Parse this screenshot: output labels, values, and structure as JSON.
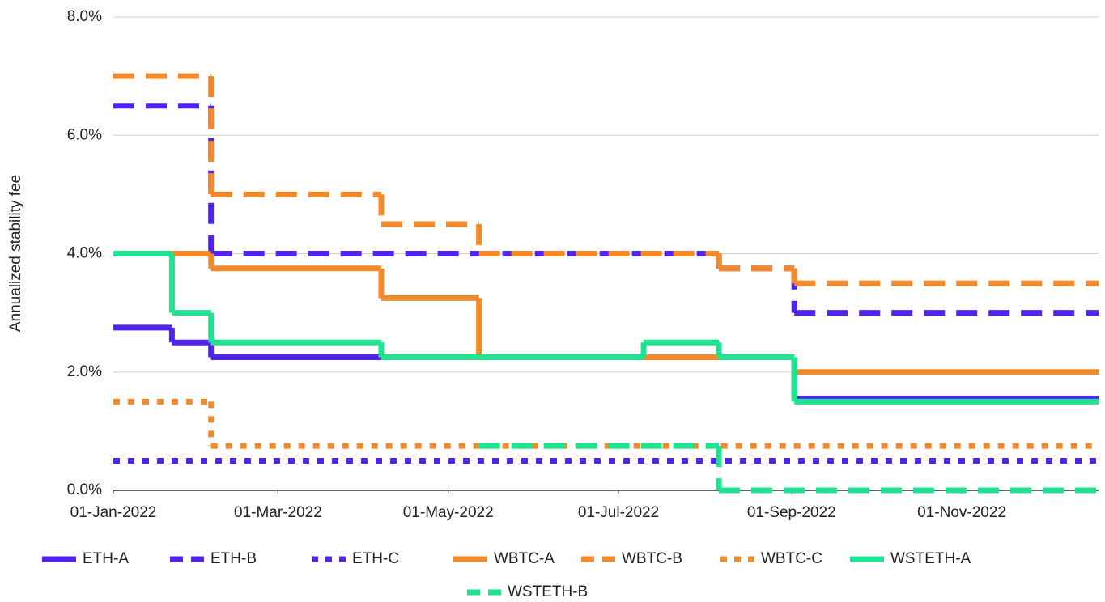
{
  "chart_data": {
    "type": "step",
    "y_label": "Annualized stability fee",
    "xlim": [
      "2022-01-01",
      "2022-12-20"
    ],
    "xticks": [
      {
        "value": "2022-01-01",
        "label": "01-Jan-2022"
      },
      {
        "value": "2022-03-01",
        "label": "01-Mar-2022"
      },
      {
        "value": "2022-05-01",
        "label": "01-May-2022"
      },
      {
        "value": "2022-07-01",
        "label": "01-Jul-2022"
      },
      {
        "value": "2022-09-01",
        "label": "01-Sep-2022"
      },
      {
        "value": "2022-11-01",
        "label": "01-Nov-2022"
      }
    ],
    "ylim": [
      0,
      8
    ],
    "yticks": [
      {
        "value": 0,
        "label": "0.0%"
      },
      {
        "value": 2,
        "label": "2.0%"
      },
      {
        "value": 4,
        "label": "4.0%"
      },
      {
        "value": 6,
        "label": "6.0%"
      },
      {
        "value": 8,
        "label": "8.0%"
      }
    ],
    "grid": true,
    "legend": "bottom",
    "series": [
      {
        "name": "ETH-A",
        "color": "#5024ee",
        "dash": "solid",
        "x": [
          "2022-01-01",
          "2022-01-22",
          "2022-02-05",
          "2022-09-02"
        ],
        "values": [
          2.75,
          2.5,
          2.25,
          1.55
        ]
      },
      {
        "name": "ETH-B",
        "color": "#5024ee",
        "dash": "dashed",
        "x": [
          "2022-01-01",
          "2022-02-05",
          "2022-08-06",
          "2022-09-02"
        ],
        "values": [
          6.5,
          4.0,
          3.75,
          3.0
        ]
      },
      {
        "name": "ETH-C",
        "color": "#5024ee",
        "dash": "dotted",
        "x": [
          "2022-01-01"
        ],
        "values": [
          0.5
        ]
      },
      {
        "name": "WBTC-A",
        "color": "#f08a2a",
        "dash": "solid",
        "x": [
          "2022-01-01",
          "2022-02-05",
          "2022-04-07",
          "2022-05-12",
          "2022-09-02"
        ],
        "values": [
          4.0,
          3.75,
          3.25,
          2.25,
          2.0
        ]
      },
      {
        "name": "WBTC-B",
        "color": "#f08a2a",
        "dash": "dashed",
        "x": [
          "2022-01-01",
          "2022-02-05",
          "2022-04-07",
          "2022-05-12",
          "2022-08-06",
          "2022-09-02"
        ],
        "values": [
          7.0,
          5.0,
          4.5,
          4.0,
          3.75,
          3.5
        ]
      },
      {
        "name": "WBTC-C",
        "color": "#f08a2a",
        "dash": "dotted",
        "x": [
          "2022-01-01",
          "2022-02-05"
        ],
        "values": [
          1.5,
          0.75
        ]
      },
      {
        "name": "WSTETH-A",
        "color": "#1ee391",
        "dash": "solid",
        "x": [
          "2022-01-01",
          "2022-01-22",
          "2022-02-05",
          "2022-04-07",
          "2022-07-10",
          "2022-08-06",
          "2022-09-02"
        ],
        "values": [
          4.0,
          3.0,
          2.5,
          2.25,
          2.5,
          2.25,
          1.5
        ]
      },
      {
        "name": "WSTETH-B",
        "color": "#1ee391",
        "dash": "dashed",
        "x": [
          "2022-05-12",
          "2022-08-06"
        ],
        "values": [
          0.75,
          0
        ]
      }
    ]
  }
}
